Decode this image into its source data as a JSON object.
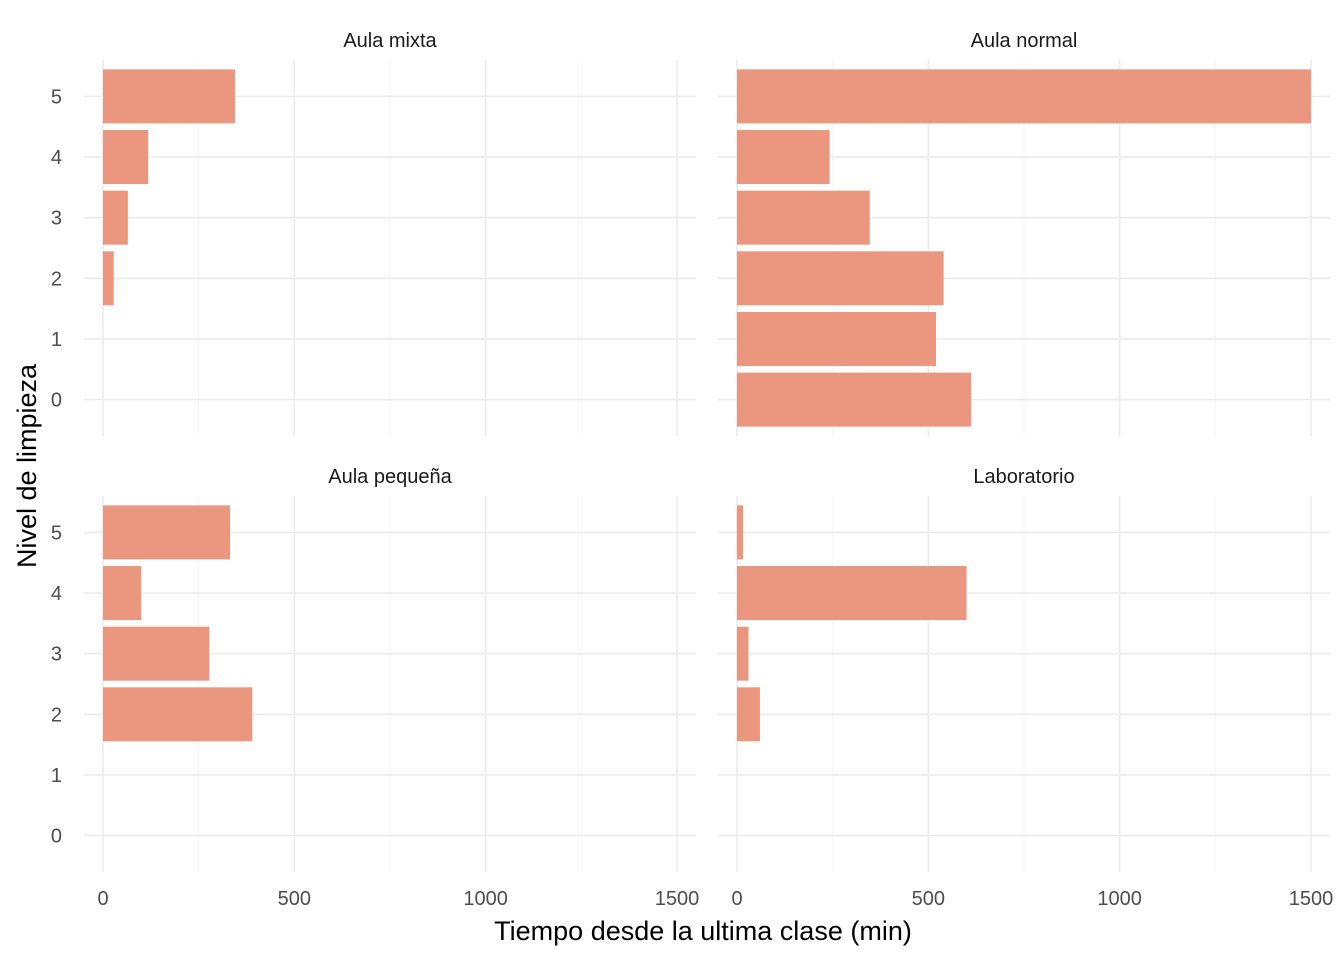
{
  "chart_data": {
    "type": "bar",
    "orientation": "horizontal",
    "layout": "facet_wrap 2x2",
    "xlabel": "Tiempo desde la ultima clase (min)",
    "ylabel": "Nivel de limpieza",
    "xlim": [
      0,
      1500
    ],
    "ylim": [
      0,
      5
    ],
    "x_ticks": [
      0,
      500,
      1000,
      1500
    ],
    "y_ticks": [
      0,
      1,
      2,
      3,
      4,
      5
    ],
    "grid": true,
    "bar_color": "#eb967e",
    "legend": "none",
    "panels": [
      {
        "title": "Aula mixta",
        "bars": [
          {
            "level": 5,
            "value": 345
          },
          {
            "level": 4,
            "value": 118
          },
          {
            "level": 3,
            "value": 65
          },
          {
            "level": 2,
            "value": 28
          }
        ]
      },
      {
        "title": "Aula normal",
        "bars": [
          {
            "level": 5,
            "value": 1500
          },
          {
            "level": 4,
            "value": 242
          },
          {
            "level": 3,
            "value": 347
          },
          {
            "level": 2,
            "value": 540
          },
          {
            "level": 1,
            "value": 520
          },
          {
            "level": 0,
            "value": 612
          }
        ]
      },
      {
        "title": "Aula pequeña",
        "bars": [
          {
            "level": 5,
            "value": 332
          },
          {
            "level": 4,
            "value": 100
          },
          {
            "level": 3,
            "value": 278
          },
          {
            "level": 2,
            "value": 390
          }
        ]
      },
      {
        "title": "Laboratorio",
        "bars": [
          {
            "level": 5,
            "value": 16
          },
          {
            "level": 4,
            "value": 600
          },
          {
            "level": 3,
            "value": 30
          },
          {
            "level": 2,
            "value": 60
          }
        ]
      }
    ]
  }
}
